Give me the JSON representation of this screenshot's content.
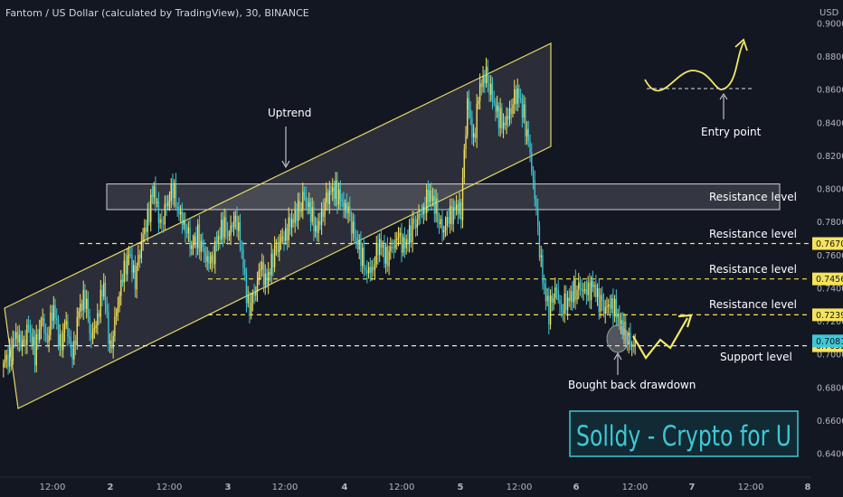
{
  "header": {
    "title": "Fantom / US Dollar (calculated by TradingView), 30, BINANCE"
  },
  "chart_data": {
    "type": "candlestick",
    "ylabel": "USD",
    "ylim": [
      0.628,
      0.905
    ],
    "y_ticks": [
      "0.9000",
      "0.8800",
      "0.8600",
      "0.8400",
      "0.8200",
      "0.8000",
      "0.7800",
      "0.7600",
      "0.7400",
      "0.7200",
      "0.7000",
      "0.6800",
      "0.6600",
      "0.6400"
    ],
    "x_ticks": [
      "12:00",
      "2",
      "12:00",
      "3",
      "12:00",
      "4",
      "12:00",
      "5",
      "12:00",
      "6",
      "12:00",
      "7",
      "12:00",
      "8"
    ],
    "price_path": [
      0.695,
      0.7,
      0.712,
      0.704,
      0.717,
      0.7,
      0.722,
      0.71,
      0.729,
      0.705,
      0.719,
      0.696,
      0.727,
      0.735,
      0.71,
      0.724,
      0.742,
      0.701,
      0.725,
      0.746,
      0.762,
      0.746,
      0.768,
      0.783,
      0.8,
      0.776,
      0.79,
      0.8,
      0.786,
      0.778,
      0.765,
      0.772,
      0.76,
      0.753,
      0.768,
      0.778,
      0.773,
      0.785,
      0.762,
      0.728,
      0.735,
      0.752,
      0.744,
      0.76,
      0.768,
      0.774,
      0.78,
      0.786,
      0.796,
      0.784,
      0.775,
      0.789,
      0.798,
      0.8,
      0.791,
      0.785,
      0.772,
      0.76,
      0.75,
      0.754,
      0.768,
      0.758,
      0.764,
      0.77,
      0.766,
      0.775,
      0.782,
      0.789,
      0.797,
      0.787,
      0.774,
      0.781,
      0.789,
      0.788,
      0.854,
      0.83,
      0.862,
      0.868,
      0.855,
      0.842,
      0.84,
      0.85,
      0.859,
      0.845,
      0.821,
      0.785,
      0.745,
      0.725,
      0.741,
      0.728,
      0.732,
      0.738,
      0.74,
      0.736,
      0.743,
      0.733,
      0.728,
      0.732,
      0.722,
      0.713,
      0.706,
      0.705
    ],
    "annotations": {
      "uptrend": "Uptrend",
      "entry_point": "Entry point",
      "bought_back": "Bought back drawdown",
      "resistance_1": "Resistance level",
      "resistance_2": "Resistance level",
      "resistance_3": "Resistance level",
      "resistance_4": "Resistance level",
      "support": "Support level"
    },
    "levels": [
      {
        "value": 0.767,
        "label": "0.7670",
        "style": "dashed"
      },
      {
        "value": 0.7456,
        "label": "0.7456",
        "style": "dashed"
      },
      {
        "value": 0.7239,
        "label": "0.7239",
        "style": "dashed"
      },
      {
        "value": 0.7052,
        "label": "0.7052",
        "style": "dashed"
      }
    ],
    "last_price": {
      "value": 0.7081,
      "label": "0.7081"
    },
    "resistance_zone": [
      0.7875,
      0.803
    ],
    "colors": {
      "up": "#f7e35a",
      "down": "#3ec8d6",
      "background": "#131722",
      "text": "#b2b5be"
    }
  },
  "watermark": {
    "text": "Solldy - Crypto for U"
  }
}
